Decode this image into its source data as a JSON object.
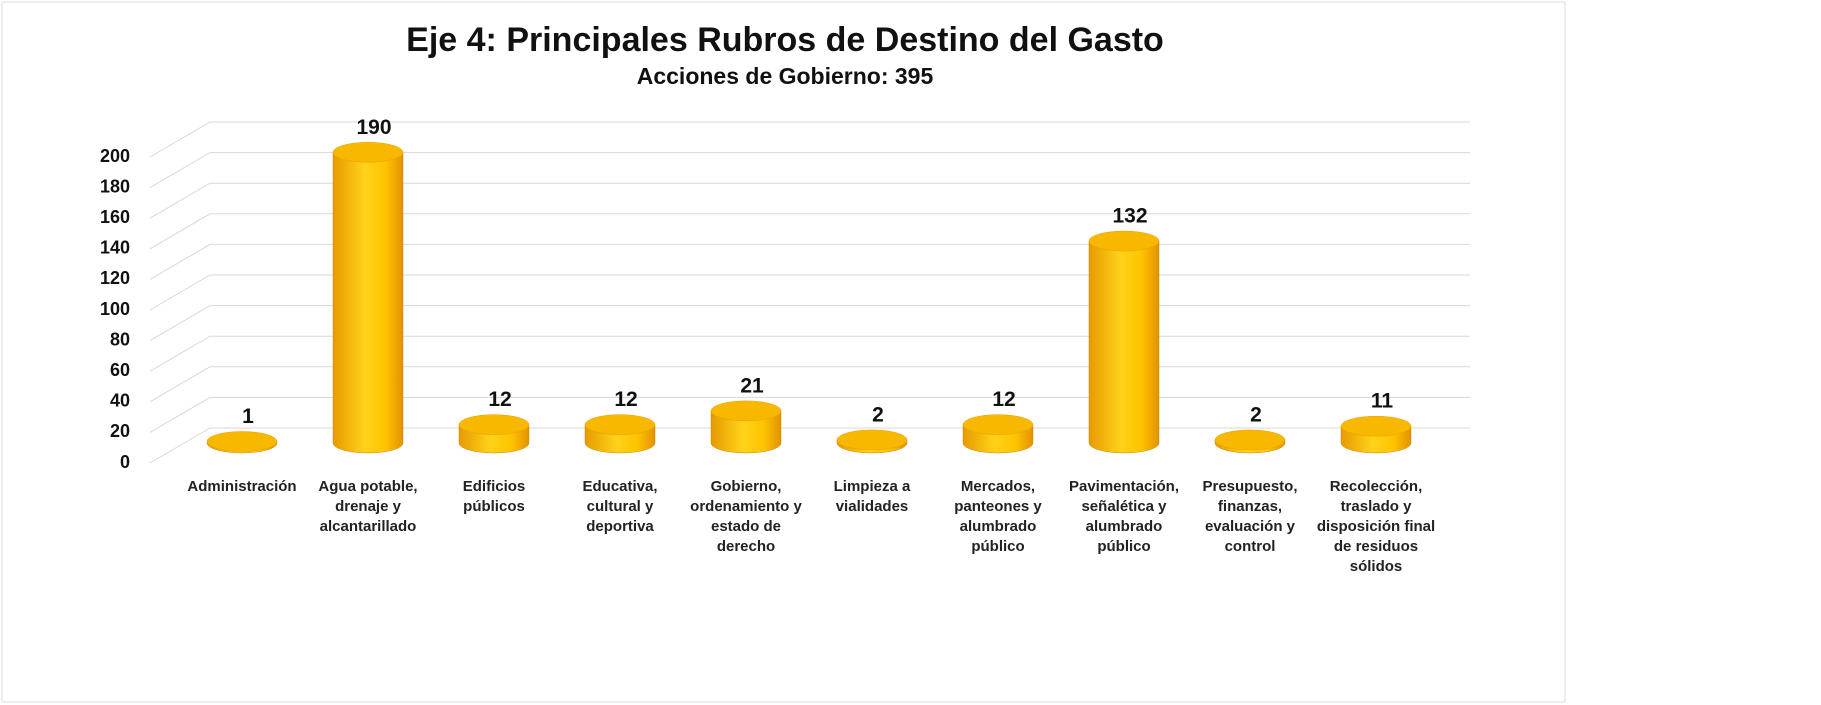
{
  "chart_data": {
    "type": "bar3d",
    "title": "Eje 4: Principales Rubros de Destino del Gasto",
    "subtitle": "Acciones de Gobierno: 395",
    "categories": [
      "Administración",
      "Agua potable, drenaje y alcantarillado",
      "Edificios públicos",
      "Educativa, cultural y deportiva",
      "Gobierno, ordenamiento y estado de derecho",
      "Limpieza a vialidades",
      "Mercados, panteones y alumbrado público",
      "Pavimentación, señalética y alumbrado público",
      "Presupuesto, finanzas, evaluación y control",
      "Recolección, traslado y disposición final de residuos sólidos"
    ],
    "values": [
      1,
      190,
      12,
      12,
      21,
      2,
      12,
      132,
      2,
      11
    ],
    "color": "#f7b500",
    "ylim": [
      0,
      200
    ],
    "yticks": [
      0,
      20,
      40,
      60,
      80,
      100,
      120,
      140,
      160,
      180,
      200
    ],
    "grid": true
  }
}
